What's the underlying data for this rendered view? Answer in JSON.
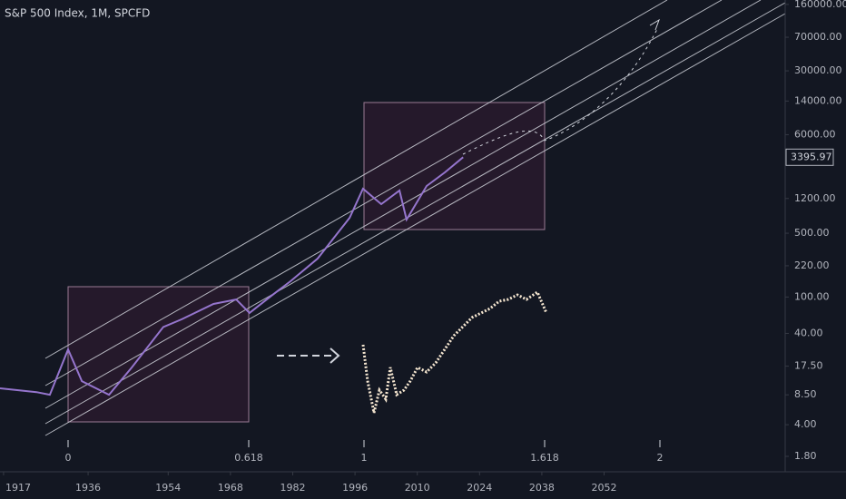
{
  "chart_data": {
    "type": "line",
    "title": "S&P 500 Index, 1M, SPCFD",
    "log_scale": true,
    "x": [
      1916.2,
      1924.4,
      1927.4,
      1931.5,
      1934.6,
      1940.7,
      1945.8,
      1952.9,
      1957.0,
      1964.2,
      1969.3,
      1972.3,
      1977.4,
      1981.5,
      1987.6,
      1994.8,
      1997.8,
      2001.9,
      2006.0,
      2007.6,
      2012.1,
      2016.2,
      2020.3
    ],
    "series": [
      {
        "name": "S&P 500 Index",
        "color": "#9575cd",
        "values": [
          10,
          9.1,
          8.5,
          26.7,
          12,
          8.5,
          16.9,
          47,
          57,
          84,
          94,
          67,
          105,
          149,
          264,
          738,
          1535,
          1040,
          1466,
          705,
          1645,
          2318,
          3396
        ]
      }
    ],
    "last_price": "3395.97",
    "xlim": [
      1916.2,
      2092.7
    ],
    "xticks": [
      1917,
      1936,
      1954,
      1968,
      1982,
      1996,
      2010,
      2024,
      2038,
      2052
    ],
    "ylim": [
      1.22,
      179000
    ],
    "yticks": [
      {
        "value": 160000,
        "label": "160000.00"
      },
      {
        "value": 70000,
        "label": "70000.00"
      },
      {
        "value": 30000,
        "label": "30000.00"
      },
      {
        "value": 14000,
        "label": "14000.00"
      },
      {
        "value": 6000,
        "label": "6000.00"
      },
      {
        "value": 1200,
        "label": "1200.00"
      },
      {
        "value": 500,
        "label": "500.00"
      },
      {
        "value": 220,
        "label": "220.00"
      },
      {
        "value": 100,
        "label": "100.00"
      },
      {
        "value": 40,
        "label": "40.00"
      },
      {
        "value": 17.5,
        "label": "17.50"
      },
      {
        "value": 8.5,
        "label": "8.50"
      },
      {
        "value": 4,
        "label": "4.00"
      },
      {
        "value": 1.8,
        "label": "1.80"
      }
    ],
    "fib_labels": [
      "0",
      "0.618",
      "1",
      "1.618",
      "2"
    ]
  }
}
